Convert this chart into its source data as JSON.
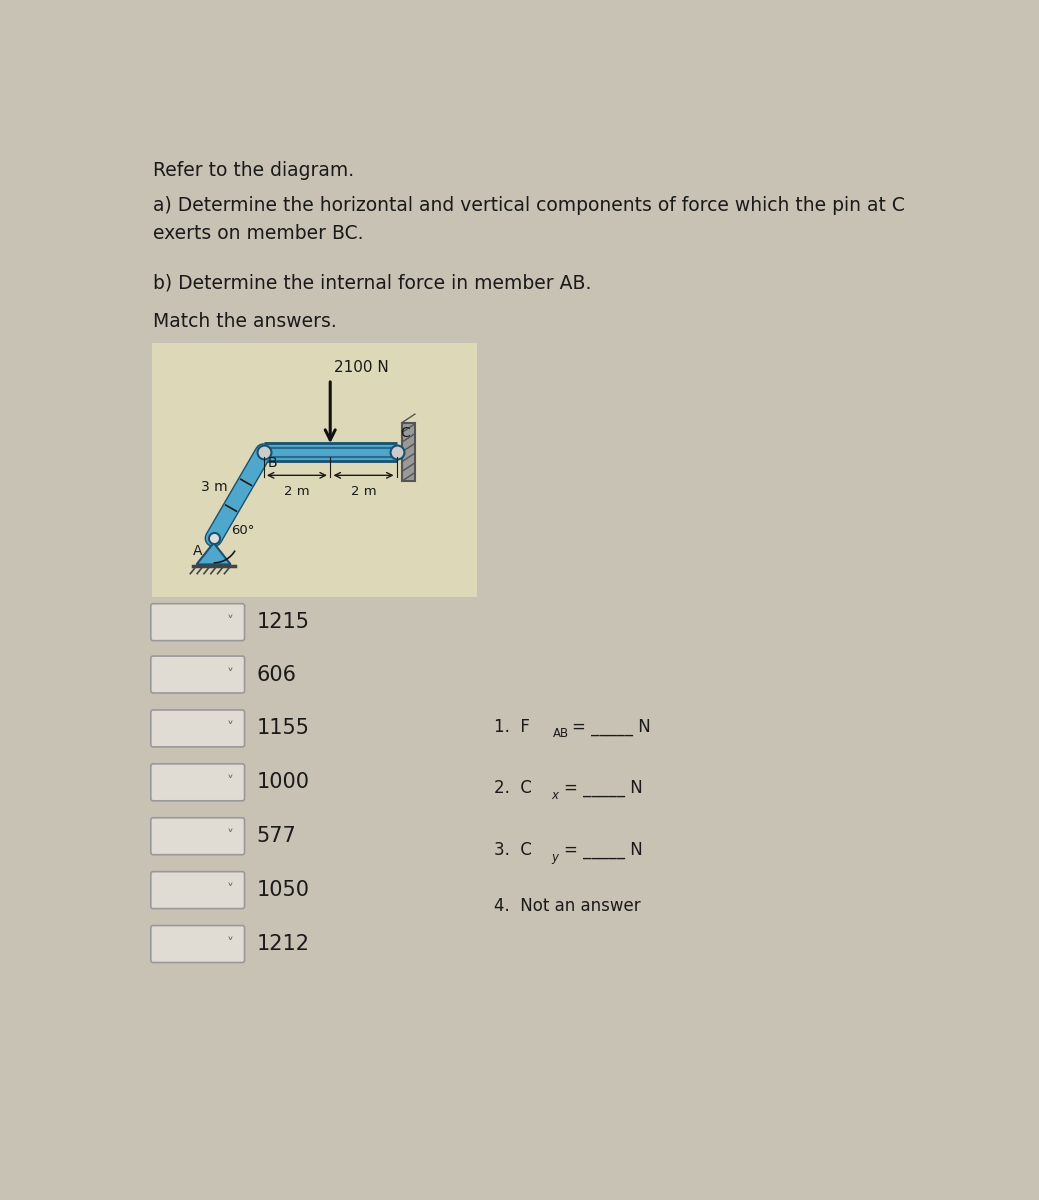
{
  "bg_color": "#c8c2b4",
  "diagram_bg": "#ddd8b8",
  "title_line1": "Refer to the diagram.",
  "question_a": "a) Determine the horizontal and vertical components of force which the pin at C\nexerts on member BC.",
  "question_b": "b) Determine the internal force in member AB.",
  "question_c": "Match the answers.",
  "force_label": "2100 N",
  "dim_3m": "3 m",
  "dim_2m_left": "2 m",
  "dim_2m_right": "2 m",
  "angle_label": "60°",
  "answer_values": [
    "1215",
    "606",
    "1155",
    "1000",
    "577",
    "1050",
    "1212"
  ],
  "text_color": "#1a1a1a",
  "box_face": "#e0dcd4",
  "box_edge": "#999999",
  "beam_color": "#4fa8cc",
  "beam_dark": "#1a5070",
  "beam_shadow": "#2a7090",
  "arrow_color": "#111111",
  "ground_color": "#444444",
  "wall_color": "#888888"
}
